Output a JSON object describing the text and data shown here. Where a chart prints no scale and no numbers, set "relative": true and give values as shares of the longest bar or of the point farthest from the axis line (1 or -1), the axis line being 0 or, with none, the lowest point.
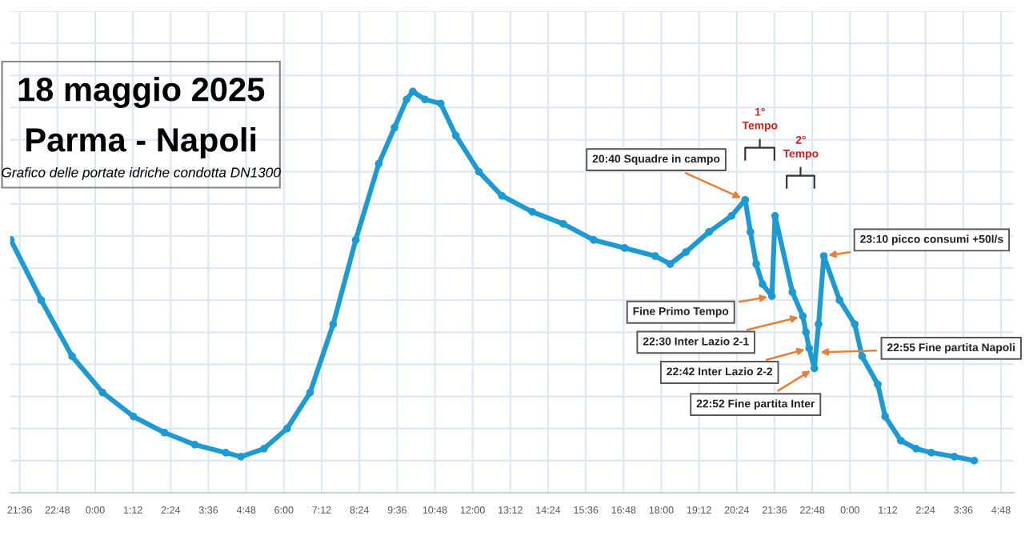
{
  "chart_data": {
    "type": "line",
    "title": "18 maggio 2025",
    "subtitle": "Parma - Napoli",
    "relative": true,
    "color": "#1e9ad2",
    "marker": "circle",
    "grid": true,
    "x": [
      "2025-05-17T21:19",
      "2025-05-17T22:17",
      "2025-05-17T23:16",
      "2025-05-18T00:14",
      "2025-05-18T01:13",
      "2025-05-18T02:12",
      "2025-05-18T03:10",
      "2025-05-18T04:09",
      "2025-05-18T04:38",
      "2025-05-18T05:22",
      "2025-05-18T06:06",
      "2025-05-18T06:50",
      "2025-05-18T07:34",
      "2025-05-18T08:17",
      "2025-05-18T09:01",
      "2025-05-18T09:31",
      "2025-05-18T09:54",
      "2025-05-18T10:06",
      "2025-05-18T10:29",
      "2025-05-18T10:59",
      "2025-05-18T11:28",
      "2025-05-18T12:12",
      "2025-05-18T12:56",
      "2025-05-18T13:54",
      "2025-05-18T14:53",
      "2025-05-18T15:51",
      "2025-05-18T16:50",
      "2025-05-18T17:48",
      "2025-05-18T18:17",
      "2025-05-18T18:47",
      "2025-05-18T19:31",
      "2025-05-18T20:14",
      "2025-05-18T20:40",
      "2025-05-18T20:50",
      "2025-05-18T21:01",
      "2025-05-18T21:13",
      "2025-05-18T21:31",
      "2025-05-18T21:37",
      "2025-05-18T22:10",
      "2025-05-18T22:30",
      "2025-05-18T22:36",
      "2025-05-18T22:42",
      "2025-05-18T22:52",
      "2025-05-18T23:00",
      "2025-05-18T23:10",
      "2025-05-18T23:40",
      "2025-05-19T00:09",
      "2025-05-19T00:23",
      "2025-05-19T00:53",
      "2025-05-19T01:07",
      "2025-05-19T01:37",
      "2025-05-19T02:06",
      "2025-05-19T02:35",
      "2025-05-19T03:19",
      "2025-05-19T03:57"
    ],
    "values": [
      0.63,
      0.48,
      0.34,
      0.25,
      0.19,
      0.15,
      0.12,
      0.1,
      0.09,
      0.11,
      0.16,
      0.25,
      0.42,
      0.63,
      0.82,
      0.91,
      0.98,
      1.0,
      0.98,
      0.97,
      0.89,
      0.8,
      0.74,
      0.7,
      0.67,
      0.63,
      0.61,
      0.59,
      0.57,
      0.6,
      0.65,
      0.69,
      0.73,
      0.65,
      0.57,
      0.52,
      0.49,
      0.69,
      0.5,
      0.44,
      0.4,
      0.36,
      0.31,
      0.42,
      0.59,
      0.48,
      0.42,
      0.34,
      0.27,
      0.19,
      0.13,
      0.11,
      0.1,
      0.09,
      0.08
    ],
    "xlim": [
      "2025-05-17T21:18",
      "2025-05-19T05:12"
    ],
    "xticks": [
      {
        "value": "2025-05-17T21:36",
        "label": "21:36"
      },
      {
        "value": "2025-05-17T22:48",
        "label": "22:48"
      },
      {
        "value": "2025-05-18T00:00",
        "label": "0:00"
      },
      {
        "value": "2025-05-18T01:12",
        "label": "1:12"
      },
      {
        "value": "2025-05-18T02:24",
        "label": "2:24"
      },
      {
        "value": "2025-05-18T03:36",
        "label": "3:36"
      },
      {
        "value": "2025-05-18T04:48",
        "label": "4:48"
      },
      {
        "value": "2025-05-18T06:00",
        "label": "6:00"
      },
      {
        "value": "2025-05-18T07:12",
        "label": "7:12"
      },
      {
        "value": "2025-05-18T08:24",
        "label": "8:24"
      },
      {
        "value": "2025-05-18T09:36",
        "label": "9:36"
      },
      {
        "value": "2025-05-18T10:48",
        "label": "10:48"
      },
      {
        "value": "2025-05-18T12:00",
        "label": "12:00"
      },
      {
        "value": "2025-05-18T13:12",
        "label": "13:12"
      },
      {
        "value": "2025-05-18T14:24",
        "label": "14:24"
      },
      {
        "value": "2025-05-18T15:36",
        "label": "15:36"
      },
      {
        "value": "2025-05-18T16:48",
        "label": "16:48"
      },
      {
        "value": "2025-05-18T18:00",
        "label": "18:00"
      },
      {
        "value": "2025-05-18T19:12",
        "label": "19:12"
      },
      {
        "value": "2025-05-18T20:24",
        "label": "20:24"
      },
      {
        "value": "2025-05-18T21:36",
        "label": "21:36"
      },
      {
        "value": "2025-05-18T22:48",
        "label": "22:48"
      },
      {
        "value": "2025-05-19T00:00",
        "label": "0:00"
      },
      {
        "value": "2025-05-19T01:12",
        "label": "1:12"
      },
      {
        "value": "2025-05-19T02:24",
        "label": "2:24"
      },
      {
        "value": "2025-05-19T03:36",
        "label": "3:36"
      },
      {
        "value": "2025-05-19T04:48",
        "label": "4:48"
      }
    ],
    "annotations": [
      "Grafico delle portate idriche condotta DN1300",
      {
        "text": "20:40 Squadre in campo",
        "x": "2025-05-18T20:40",
        "y": 0.73
      },
      {
        "text": "Fine Primo Tempo",
        "x": "2025-05-18T21:31",
        "y": 0.49
      },
      {
        "text": "22:30 Inter Lazio 2-1",
        "x": "2025-05-18T22:30",
        "y": 0.44
      },
      {
        "text": "22:42 Inter Lazio 2-2",
        "x": "2025-05-18T22:42",
        "y": 0.36
      },
      {
        "text": "22:52 Fine partita Inter",
        "x": "2025-05-18T22:52",
        "y": 0.31
      },
      {
        "text": "22:55 Fine partita Napoli",
        "x": "2025-05-18T22:55",
        "y": 0.35
      },
      {
        "text": "23:10 picco consumi +50l/s",
        "x": "2025-05-18T23:10",
        "y": 0.59
      },
      "1° Tempo",
      "2° Tempo"
    ]
  }
}
